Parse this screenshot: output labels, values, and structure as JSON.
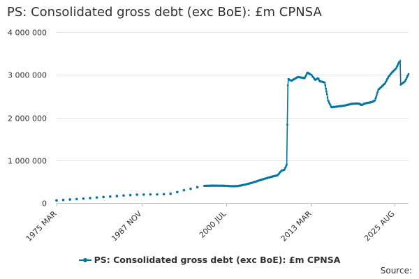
{
  "title": "PS: Consolidated gross debt (exc BoE): £m CPNSA",
  "source": "Source:",
  "colors": {
    "series": "#0075a3",
    "grid": "#e4e4e4",
    "axis": "#bfbfbf",
    "text": "#323132"
  },
  "chart_data": {
    "type": "line",
    "title": "PS: Consolidated gross debt (exc BoE): £m CPNSA",
    "xlabel": "",
    "ylabel": "",
    "x_tick_labels": [
      "1975 MAR",
      "1987 NOV",
      "2000 JUL",
      "2013 MAR",
      "2025 AUG"
    ],
    "y_tick_labels": [
      "0",
      "1 000 000",
      "2 000 000",
      "3 000 000",
      "4 000 000"
    ],
    "ylim": [
      0,
      4000000
    ],
    "grid": true,
    "legend_position": "bottom",
    "series": [
      {
        "name": "PS: Consolidated gross debt (exc BoE): £m CPNSA",
        "sparse_points": [
          [
            "1975 MAR",
            60000
          ],
          [
            "1976 MAR",
            70000
          ],
          [
            "1977 MAR",
            82000
          ],
          [
            "1978 MAR",
            92000
          ],
          [
            "1979 MAR",
            102000
          ],
          [
            "1980 MAR",
            115000
          ],
          [
            "1981 MAR",
            128000
          ],
          [
            "1982 MAR",
            140000
          ],
          [
            "1983 MAR",
            150000
          ],
          [
            "1984 MAR",
            162000
          ],
          [
            "1985 MAR",
            175000
          ],
          [
            "1986 MAR",
            185000
          ],
          [
            "1987 MAR",
            195000
          ],
          [
            "1988 MAR",
            198000
          ],
          [
            "1989 MAR",
            200000
          ],
          [
            "1990 MAR",
            200000
          ],
          [
            "1991 MAR",
            205000
          ],
          [
            "1992 MAR",
            215000
          ],
          [
            "1993 MAR",
            255000
          ],
          [
            "1994 MAR",
            300000
          ],
          [
            "1995 MAR",
            330000
          ],
          [
            "1996 MAR",
            370000
          ]
        ],
        "monthly_anchors": [
          [
            "1997 MAR",
            400000
          ],
          [
            "1998 MAR",
            405000
          ],
          [
            "1999 MAR",
            405000
          ],
          [
            "2000 JUL",
            402000
          ],
          [
            "2001 MAR",
            392000
          ],
          [
            "2002 MAR",
            395000
          ],
          [
            "2003 MAR",
            425000
          ],
          [
            "2004 MAR",
            465000
          ],
          [
            "2005 MAR",
            515000
          ],
          [
            "2006 MAR",
            565000
          ],
          [
            "2007 MAR",
            610000
          ],
          [
            "2008 MAR",
            650000
          ],
          [
            "2008 SEP",
            750000
          ],
          [
            "2009 MAR",
            780000
          ],
          [
            "2009 JUL",
            900000
          ],
          [
            "2009 SEP",
            2750000
          ],
          [
            "2009 OCT",
            2900000
          ],
          [
            "2010 MAR",
            2860000
          ],
          [
            "2011 MAR",
            2950000
          ],
          [
            "2012 MAR",
            2920000
          ],
          [
            "2012 AUG",
            3050000
          ],
          [
            "2013 MAR",
            3000000
          ],
          [
            "2013 OCT",
            2880000
          ],
          [
            "2014 MAR",
            2920000
          ],
          [
            "2014 JUN",
            2850000
          ],
          [
            "2015 MAR",
            2820000
          ],
          [
            "2015 SEP",
            2400000
          ],
          [
            "2016 MAR",
            2240000
          ],
          [
            "2017 MAR",
            2260000
          ],
          [
            "2018 MAR",
            2280000
          ],
          [
            "2019 MAR",
            2320000
          ],
          [
            "2020 MAR",
            2330000
          ],
          [
            "2020 SEP",
            2290000
          ],
          [
            "2021 MAR",
            2330000
          ],
          [
            "2022 MAR",
            2360000
          ],
          [
            "2022 SEP",
            2400000
          ],
          [
            "2023 MAR",
            2650000
          ],
          [
            "2024 MAR",
            2800000
          ],
          [
            "2024 SEP",
            2950000
          ],
          [
            "2025 MAR",
            3050000
          ],
          [
            "2025 NOV",
            3150000
          ],
          [
            "2026 MAR",
            3270000
          ],
          [
            "2026 JUN",
            3320000
          ],
          [
            "2026 JUL",
            2770000
          ],
          [
            "2027 MAR",
            2850000
          ],
          [
            "2027 SEP",
            3020000
          ]
        ]
      }
    ]
  }
}
